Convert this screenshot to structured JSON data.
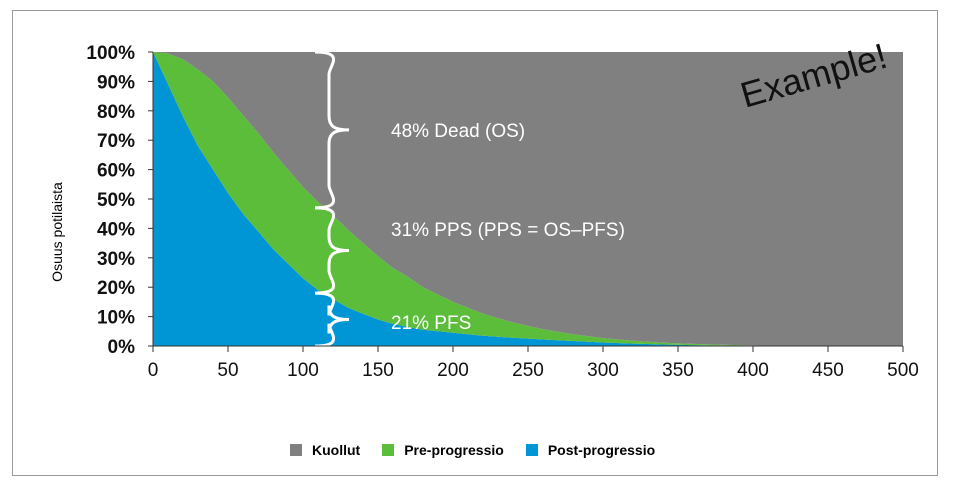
{
  "chart_data": {
    "type": "area",
    "stacked": true,
    "ylabel": "Osuus potilaista",
    "xlabel": "",
    "xlim": [
      0,
      500
    ],
    "ylim": [
      0,
      100
    ],
    "x_ticks": [
      "0",
      "50",
      "100",
      "150",
      "200",
      "250",
      "300",
      "350",
      "400",
      "450",
      "500"
    ],
    "y_ticks": [
      "0%",
      "10%",
      "20%",
      "30%",
      "40%",
      "50%",
      "60%",
      "70%",
      "80%",
      "90%",
      "100%"
    ],
    "x": [
      0,
      10,
      20,
      30,
      40,
      50,
      60,
      70,
      80,
      90,
      100,
      110,
      120,
      130,
      140,
      150,
      160,
      170,
      180,
      190,
      200,
      220,
      240,
      260,
      280,
      300,
      320,
      340,
      360,
      380,
      400,
      420,
      440,
      460,
      480,
      500
    ],
    "series": [
      {
        "name": "Post-progressio",
        "color": "#0096d6",
        "values": [
          100,
          89,
          78,
          68,
          60,
          52,
          45,
          39,
          33,
          28,
          23,
          19,
          16,
          13,
          11,
          9,
          7.5,
          6.5,
          5.5,
          5,
          4.5,
          3.5,
          2.8,
          2.2,
          1.7,
          1.2,
          0.8,
          0.5,
          0.3,
          0.2,
          0.1,
          0,
          0,
          0,
          0,
          0
        ]
      },
      {
        "name": "Pre-progressio",
        "color": "#5cbd3a",
        "values": [
          0,
          10.5,
          19.5,
          26,
          30,
          32.5,
          33.5,
          33.5,
          33,
          32,
          31,
          30,
          28.5,
          26.5,
          24,
          21.5,
          19,
          17,
          14.5,
          12.5,
          10.5,
          7.5,
          5.2,
          3.5,
          2.3,
          1.5,
          1,
          0.6,
          0.4,
          0.2,
          0.1,
          0,
          0,
          0,
          0,
          0
        ]
      },
      {
        "name": "Kuollut",
        "color": "#808080",
        "values": [
          0,
          0.5,
          2.5,
          6,
          10,
          15.5,
          21.5,
          27.5,
          34,
          40,
          46,
          51,
          55.5,
          60.5,
          65,
          69.5,
          73.5,
          76.5,
          80,
          82.5,
          85,
          89,
          92,
          94.3,
          96,
          97.3,
          98.2,
          98.9,
          99.3,
          99.6,
          99.8,
          100,
          100,
          100,
          100,
          100
        ]
      }
    ],
    "annotations": [
      {
        "text": "48% Dead (OS)",
        "brace_from": 47,
        "brace_to": 100,
        "brace_x": 108
      },
      {
        "text": "31% PPS (PPS = OS–PFS)",
        "brace_from": 18,
        "brace_to": 47,
        "brace_x": 108
      },
      {
        "text": "21% PFS",
        "brace_from": 0,
        "brace_to": 18,
        "brace_x": 108
      }
    ],
    "watermark": "Example!",
    "grid": false,
    "legend_position": "bottom"
  },
  "legend": [
    {
      "label": "Kuollut",
      "color": "#808080"
    },
    {
      "label": "Pre-progressio",
      "color": "#5cbd3a"
    },
    {
      "label": "Post-progressio",
      "color": "#0096d6"
    }
  ]
}
